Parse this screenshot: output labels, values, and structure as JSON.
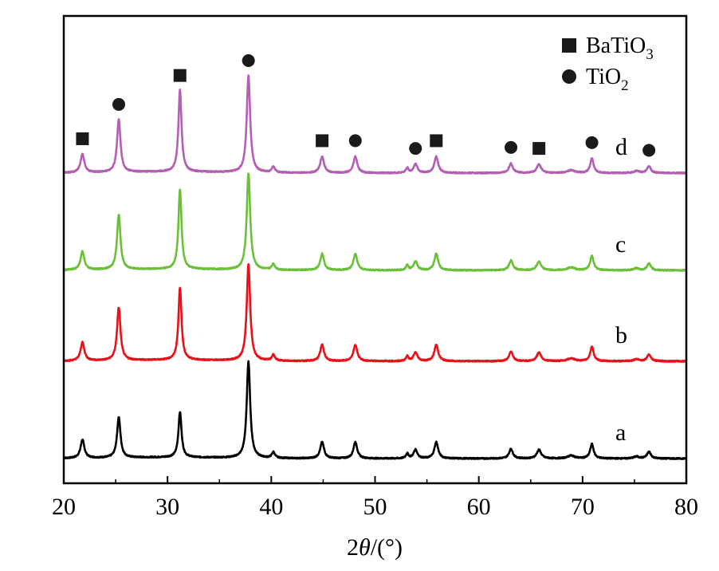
{
  "chart_data": {
    "type": "line",
    "xlabel_parts": [
      "2",
      "θ",
      "/(°)"
    ],
    "xlim": [
      20,
      80
    ],
    "xticks": [
      "20",
      "30",
      "40",
      "50",
      "60",
      "70",
      "80"
    ],
    "stack_offsets": [
      0,
      1,
      2,
      3
    ],
    "legend": [
      {
        "marker": "square",
        "label": "BaTiO",
        "sub": "3"
      },
      {
        "marker": "circle",
        "label": "TiO",
        "sub": "2"
      }
    ],
    "peaks": [
      {
        "x": 21.8,
        "h": 0.19,
        "w": 0.22
      },
      {
        "x": 25.3,
        "h": 0.42,
        "w": 0.2
      },
      {
        "x": 31.2,
        "h": 0.47,
        "w": 0.18
      },
      {
        "x": 37.8,
        "h": 1.0,
        "w": 0.2
      },
      {
        "x": 40.2,
        "h": 0.06,
        "w": 0.18
      },
      {
        "x": 44.9,
        "h": 0.17,
        "w": 0.22
      },
      {
        "x": 48.1,
        "h": 0.17,
        "w": 0.22
      },
      {
        "x": 53.1,
        "h": 0.05,
        "w": 0.15
      },
      {
        "x": 53.9,
        "h": 0.09,
        "w": 0.22
      },
      {
        "x": 55.9,
        "h": 0.17,
        "w": 0.22
      },
      {
        "x": 63.1,
        "h": 0.1,
        "w": 0.22
      },
      {
        "x": 65.8,
        "h": 0.09,
        "w": 0.25
      },
      {
        "x": 68.9,
        "h": 0.03,
        "w": 0.4
      },
      {
        "x": 70.9,
        "h": 0.15,
        "w": 0.2
      },
      {
        "x": 75.2,
        "h": 0.02,
        "w": 0.3
      },
      {
        "x": 76.4,
        "h": 0.07,
        "w": 0.22
      }
    ],
    "series": [
      {
        "label": "a",
        "color": "#000000",
        "scale": [
          1.0,
          1.0,
          1.0,
          1.0,
          1.0,
          1.0,
          1.0,
          1.0,
          1.0,
          1.0,
          1.0,
          1.0,
          1.0,
          1.0,
          1.0,
          1.0
        ]
      },
      {
        "label": "b",
        "color": "#e8111a",
        "scale": [
          1.0,
          1.3,
          1.6,
          1.0,
          1.0,
          1.0,
          1.0,
          1.0,
          1.0,
          1.0,
          1.0,
          1.0,
          1.0,
          1.0,
          1.0,
          1.0
        ]
      },
      {
        "label": "c",
        "color": "#6cbf3a",
        "scale": [
          1.0,
          1.35,
          1.75,
          1.0,
          1.0,
          1.0,
          1.0,
          1.0,
          1.0,
          1.0,
          1.0,
          1.0,
          1.0,
          1.0,
          1.0,
          1.0
        ]
      },
      {
        "label": "d",
        "color": "#b35fb3",
        "scale": [
          1.0,
          1.3,
          1.8,
          1.0,
          1.0,
          1.0,
          1.0,
          1.0,
          1.0,
          1.0,
          1.0,
          1.0,
          1.0,
          1.0,
          1.0,
          1.0
        ]
      }
    ],
    "annotations": [
      {
        "x": 21.8,
        "marker": "square"
      },
      {
        "x": 25.3,
        "marker": "circle"
      },
      {
        "x": 31.2,
        "marker": "square"
      },
      {
        "x": 37.8,
        "marker": "circle"
      },
      {
        "x": 44.9,
        "marker": "square"
      },
      {
        "x": 48.1,
        "marker": "circle"
      },
      {
        "x": 53.9,
        "marker": "circle"
      },
      {
        "x": 55.9,
        "marker": "square"
      },
      {
        "x": 63.1,
        "marker": "circle"
      },
      {
        "x": 65.8,
        "marker": "square"
      },
      {
        "x": 70.9,
        "marker": "circle"
      },
      {
        "x": 76.4,
        "marker": "circle"
      }
    ]
  }
}
